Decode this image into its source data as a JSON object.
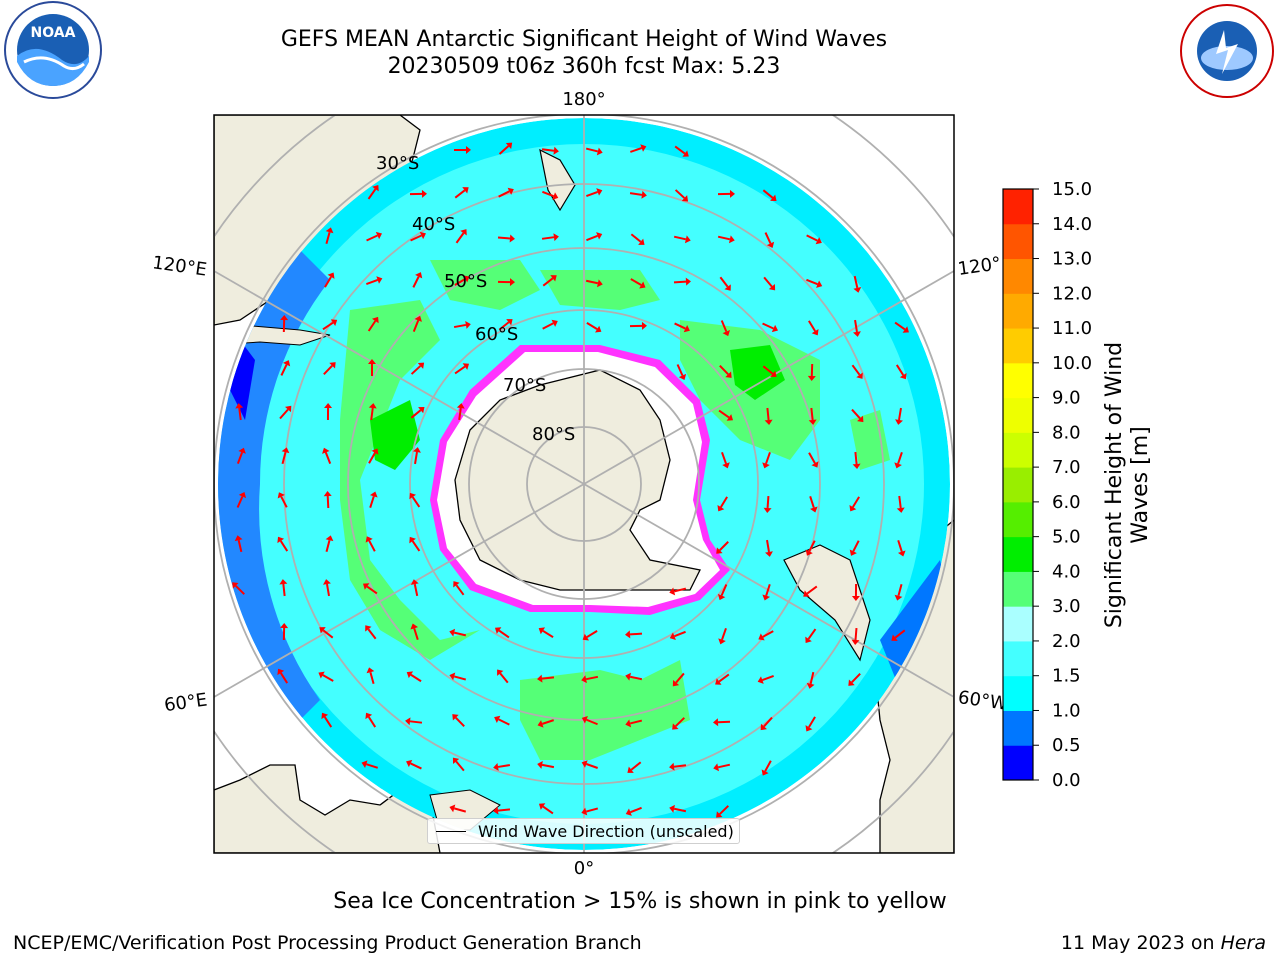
{
  "title": {
    "line1": "GEFS MEAN Antarctic Significant Height of Wind Waves",
    "line2": "20230509 t06z 360h fcst   Max: 5.23"
  },
  "logos": {
    "left": "noaa-logo",
    "right": "nws-logo"
  },
  "map": {
    "projection": "south-polar-stereographic",
    "lon_labels": {
      "top": "180°",
      "bottom": "0°",
      "left_upper": "120°E",
      "left_lower": "60°E",
      "right_upper": "120°",
      "right_lower": "60°W"
    },
    "lat_labels": [
      "30°S",
      "40°S",
      "50°S",
      "60°S",
      "70°S",
      "80°S"
    ],
    "legend": "Wind Wave Direction (unscaled)",
    "arrow_color": "#ff0000",
    "land_color": "#efedde",
    "ice_colors": [
      "#ff33ff",
      "#ffff66"
    ]
  },
  "colorbar": {
    "title_line1": "Significant Height of Wind",
    "title_line2": "Waves [m]",
    "ticks": [
      "0.0",
      "0.5",
      "1.0",
      "1.5",
      "2.0",
      "3.0",
      "4.0",
      "5.0",
      "6.0",
      "7.0",
      "8.0",
      "9.0",
      "10.0",
      "11.0",
      "12.0",
      "13.0",
      "14.0",
      "15.0"
    ],
    "colors": [
      "#0000ff",
      "#0077ff",
      "#00ffff",
      "#44ffff",
      "#aaffff",
      "#55ff77",
      "#00ee00",
      "#55ee00",
      "#99ee00",
      "#ccff00",
      "#eeff00",
      "#ffff00",
      "#ffcc00",
      "#ffaa00",
      "#ff8800",
      "#ff5500",
      "#ff2200"
    ]
  },
  "footer": {
    "note": "Sea Ice Concentration > 15% is shown in pink to yellow",
    "left": "NCEP/EMC/Verification Post Processing Product Generation Branch",
    "date": "11 May 2023 on ",
    "machine": "Hera"
  }
}
